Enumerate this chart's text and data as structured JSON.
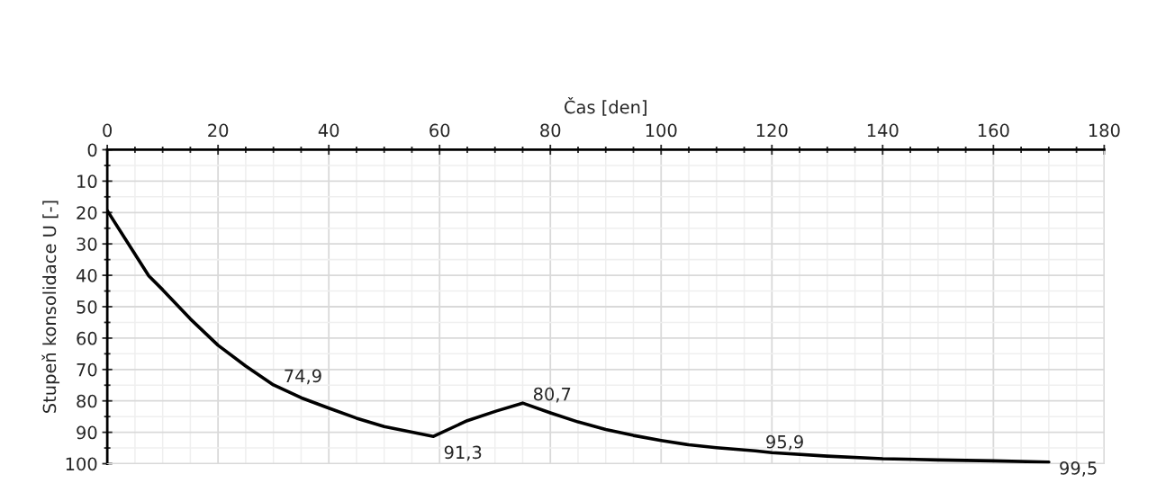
{
  "chart_data": {
    "type": "line",
    "xlabel": "Čas [den]",
    "ylabel": "Stupeň konsolidace U [-]",
    "x": [
      0,
      7.5,
      10,
      15,
      20,
      25,
      30,
      35,
      40,
      45,
      50,
      58.9,
      65,
      70.3,
      75,
      80,
      85,
      90,
      95,
      100,
      105,
      110,
      117,
      120,
      130,
      140,
      150,
      160,
      170
    ],
    "series": [
      {
        "color": "#000000",
        "values": [
          19.4,
          40.2,
          44.6,
          53.9,
          62.3,
          68.9,
          74.9,
          79,
          82.3,
          85.5,
          88.2,
          91.3,
          86.3,
          83.2,
          80.7,
          83.8,
          86.7,
          89.1,
          91,
          92.6,
          94,
          94.9,
          95.9,
          96.5,
          97.6,
          98.4,
          98.8,
          99.1,
          99.5
        ],
        "value_labels": [
          null,
          null,
          null,
          null,
          null,
          null,
          "74,9",
          null,
          null,
          null,
          null,
          "91,3",
          null,
          null,
          "80,7",
          null,
          null,
          null,
          null,
          null,
          null,
          null,
          "95,9",
          null,
          null,
          null,
          null,
          null,
          "99,5"
        ]
      }
    ],
    "xlim": [
      0,
      180
    ],
    "xticks": [
      0,
      20,
      40,
      60,
      80,
      100,
      120,
      140,
      160,
      180
    ],
    "ylim": [
      100,
      0
    ],
    "yticks": [
      0,
      10,
      20,
      30,
      40,
      50,
      60,
      70,
      80,
      90,
      100
    ],
    "grid": true,
    "marker": "none",
    "line_style": "solid",
    "legend": false
  }
}
